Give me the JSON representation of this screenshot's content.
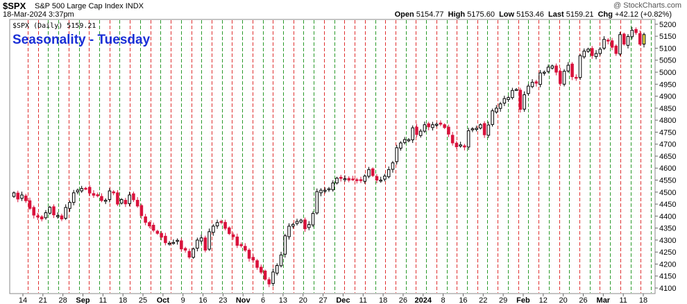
{
  "header": {
    "symbol": "$SPX",
    "description": "S&P 500 Large Cap Index",
    "exchange": "INDX",
    "watermark": "@ StockCharts.com",
    "date_line": "18-Mar-2024 3:37pm",
    "open_label": "Open",
    "open": "5154.77",
    "high_label": "High",
    "high": "5175.60",
    "low_label": "Low",
    "low": "5153.46",
    "last_label": "Last",
    "last": "5159.21",
    "chg_label": "Chg",
    "chg": "+42.12 (+0.82%)"
  },
  "colors": {
    "up": "#ffffff",
    "down": "#d9123c",
    "flat": "#000000",
    "red_line": "#e03030",
    "green_line": "#2a9a2a",
    "title": "#1a2fd6",
    "highlight": "#f3e84a"
  },
  "chart_data": {
    "type": "candlestick",
    "title": "Seasonality - Tuesday",
    "legend": "$SPX (Daily) 5159.21",
    "y_range": [
      4080,
      5220
    ],
    "y_ticks": [
      4100,
      4150,
      4200,
      4250,
      4300,
      4350,
      4400,
      4450,
      4500,
      4550,
      4600,
      4650,
      4700,
      4750,
      4800,
      4850,
      4900,
      4950,
      5000,
      5050,
      5100,
      5150,
      5200
    ],
    "x_tick_labels": [
      "14",
      "21",
      "28",
      "Sep",
      "11",
      "18",
      "25",
      "Oct",
      "9",
      "16",
      "23",
      "Nov",
      "6",
      "13",
      "20",
      "27",
      "Dec",
      "11",
      "18",
      "26",
      "2024",
      "8",
      "16",
      "22",
      "29",
      "Feb",
      "12",
      "20",
      "26",
      "Mar",
      "11",
      "18"
    ],
    "vertical_markers": [
      {
        "color": "red"
      },
      {
        "color": "red"
      },
      {
        "color": "green"
      },
      {
        "color": "green"
      },
      {
        "color": "red"
      },
      {
        "color": "green"
      },
      {
        "color": "red"
      },
      {
        "color": "green"
      },
      {
        "color": "red"
      },
      {
        "color": "green"
      },
      {
        "color": "red"
      },
      {
        "color": "green"
      },
      {
        "color": "red"
      },
      {
        "color": "green"
      },
      {
        "color": "red"
      },
      {
        "color": "green"
      },
      {
        "color": "red"
      },
      {
        "color": "green"
      },
      {
        "color": "red"
      },
      {
        "color": "green"
      },
      {
        "color": "red"
      },
      {
        "color": "green"
      },
      {
        "color": "red"
      },
      {
        "color": "green"
      },
      {
        "color": "red"
      },
      {
        "color": "green"
      },
      {
        "color": "red"
      },
      {
        "color": "green"
      },
      {
        "color": "green"
      },
      {
        "color": "red"
      },
      {
        "color": "green"
      },
      {
        "color": "red"
      },
      {
        "color": "red"
      },
      {
        "color": "red"
      },
      {
        "color": "green"
      },
      {
        "color": "red"
      },
      {
        "color": "red"
      },
      {
        "color": "green"
      },
      {
        "color": "red"
      },
      {
        "color": "green"
      },
      {
        "color": "red"
      },
      {
        "color": "green"
      },
      {
        "color": "red"
      },
      {
        "color": "green"
      },
      {
        "color": "red"
      },
      {
        "color": "green"
      },
      {
        "color": "red"
      },
      {
        "color": "green"
      },
      {
        "color": "red"
      },
      {
        "color": "green"
      },
      {
        "color": "red"
      },
      {
        "color": "green"
      },
      {
        "color": "red"
      },
      {
        "color": "green"
      },
      {
        "color": "red"
      },
      {
        "color": "green"
      },
      {
        "color": "red"
      },
      {
        "color": "green"
      },
      {
        "color": "red"
      },
      {
        "color": "green"
      },
      {
        "color": "red"
      },
      {
        "color": "green"
      }
    ],
    "closes": [
      4497,
      4471,
      4488,
      4464,
      4432,
      4404,
      4396,
      4388,
      4414,
      4437,
      4405,
      4402,
      4388,
      4436,
      4457,
      4497,
      4508,
      4515,
      4515,
      4496,
      4487,
      4487,
      4465,
      4466,
      4505,
      4497,
      4450,
      4469,
      4451,
      4488,
      4468,
      4442,
      4402,
      4374,
      4359,
      4341,
      4328,
      4312,
      4289,
      4287,
      4290,
      4299,
      4263,
      4258,
      4229,
      4263,
      4300,
      4309,
      4258,
      4335,
      4358,
      4373,
      4376,
      4349,
      4327,
      4314,
      4278,
      4278,
      4258,
      4224,
      4217,
      4186,
      4166,
      4137,
      4117,
      4167,
      4194,
      4238,
      4318,
      4358,
      4365,
      4378,
      4383,
      4347,
      4365,
      4411,
      4502,
      4508,
      4508,
      4514,
      4538,
      4558,
      4557,
      4556,
      4550,
      4554,
      4550,
      4550,
      4567,
      4594,
      4569,
      4550,
      4550,
      4567,
      4594,
      4622,
      4685,
      4705,
      4719,
      4719,
      4768,
      4740,
      4754,
      4781,
      4772,
      4781,
      4783,
      4783,
      4769,
      4742,
      4705,
      4689,
      4697,
      4688,
      4756,
      4764,
      4766,
      4781,
      4739,
      4780,
      4839,
      4850,
      4868,
      4890,
      4894,
      4924,
      4928,
      4845,
      4906,
      4942,
      4958,
      4954,
      4997,
      5000,
      5021,
      5026,
      5000,
      4953,
      5004,
      5029,
      4981,
      4976,
      5069,
      5088,
      5096,
      5069,
      5078,
      5096,
      5137,
      5130,
      5104,
      5078,
      5157,
      5117,
      5149,
      5175,
      5165,
      5117,
      5157
    ]
  }
}
